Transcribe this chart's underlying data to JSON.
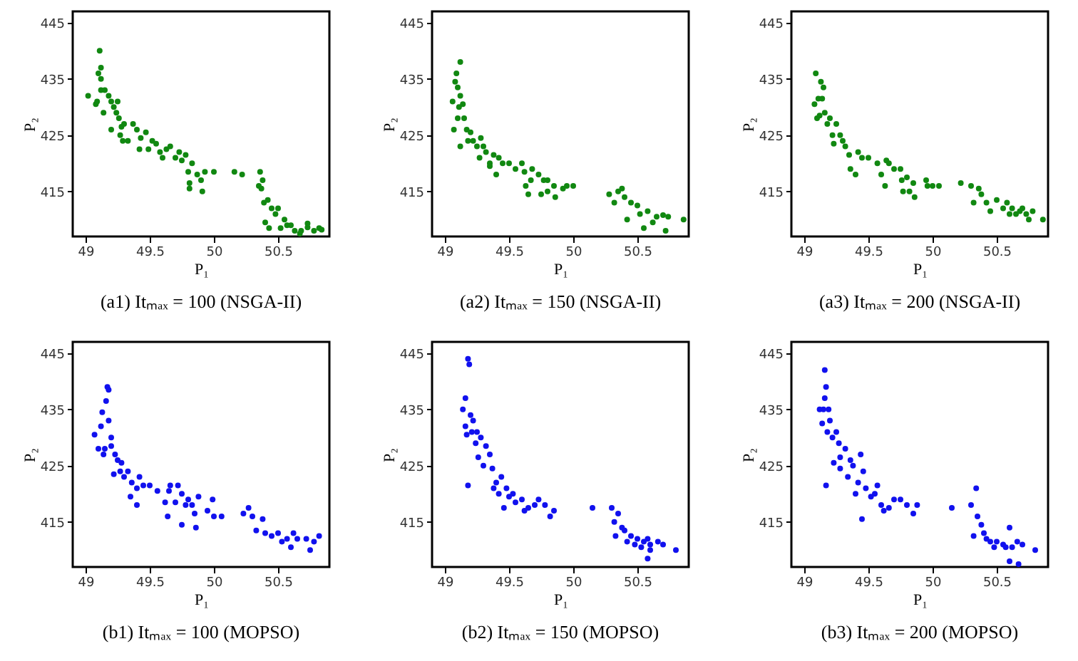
{
  "chart_data": [
    {
      "type": "scatter",
      "title": "(a1) Itₘₐₓ = 100 (NSGA-II)",
      "xlabel": "P₁",
      "ylabel": "P₂",
      "xlim": [
        48.9,
        50.9
      ],
      "ylim": [
        407,
        447
      ],
      "xticks": [
        49,
        49.5,
        50,
        50.5
      ],
      "yticks": [
        415,
        425,
        435,
        445
      ],
      "marker": "circle",
      "series": [
        {
          "color": "#118811",
          "x": [
            49.02,
            49.08,
            49.09,
            49.1,
            49.11,
            49.12,
            49.12,
            49.12,
            49.14,
            49.15,
            49.18,
            49.2,
            49.2,
            49.22,
            49.24,
            49.25,
            49.26,
            49.27,
            49.28,
            49.29,
            49.3,
            49.33,
            49.37,
            49.4,
            49.42,
            49.43,
            49.47,
            49.49,
            49.52,
            49.55,
            49.58,
            49.6,
            49.63,
            49.66,
            49.7,
            49.73,
            49.75,
            49.78,
            49.8,
            49.81,
            49.81,
            49.83,
            49.87,
            49.9,
            49.91,
            49.93,
            50.0,
            50.16,
            50.22,
            50.35,
            50.36,
            50.37,
            50.38,
            50.39,
            50.4,
            50.42,
            50.43,
            50.45,
            50.48,
            50.5,
            50.52,
            50.55,
            50.57,
            50.6,
            50.63,
            50.67,
            50.68,
            50.73,
            50.73,
            50.78,
            50.82,
            50.84
          ],
          "values": [
            432,
            430.5,
            431,
            436,
            440,
            437,
            435,
            433,
            429,
            433,
            432,
            431,
            426,
            430,
            429,
            431,
            428,
            425,
            426.5,
            424,
            427,
            424,
            427,
            426,
            422.5,
            424.5,
            425.5,
            422.5,
            424,
            423.5,
            422,
            421,
            422.5,
            423,
            421,
            422,
            420.5,
            421.5,
            418.5,
            416.5,
            415.5,
            420,
            418,
            417,
            415,
            418.5,
            418.5,
            418.5,
            418,
            416,
            418.5,
            415.5,
            417,
            413,
            409.5,
            413.5,
            408.5,
            412,
            411,
            412,
            408.5,
            410,
            409,
            409,
            408,
            407.5,
            408,
            408.6,
            409.3,
            408,
            408.5,
            408.2
          ]
        }
      ]
    },
    {
      "type": "scatter",
      "title": "(a2) Itₘₐₓ = 150 (NSGA-II)",
      "xlabel": "P₁",
      "ylabel": "P₂",
      "xlim": [
        48.9,
        50.9
      ],
      "ylim": [
        407,
        447
      ],
      "xticks": [
        49,
        49.5,
        50,
        50.5
      ],
      "yticks": [
        415,
        425,
        435,
        445
      ],
      "marker": "circle",
      "series": [
        {
          "color": "#118811",
          "x": [
            49.06,
            49.07,
            49.08,
            49.09,
            49.1,
            49.1,
            49.11,
            49.12,
            49.12,
            49.12,
            49.14,
            49.15,
            49.17,
            49.18,
            49.2,
            49.22,
            49.25,
            49.27,
            49.28,
            49.3,
            49.32,
            49.35,
            49.35,
            49.38,
            49.4,
            49.42,
            49.45,
            49.5,
            49.55,
            49.6,
            49.62,
            49.63,
            49.65,
            49.67,
            49.68,
            49.73,
            49.75,
            49.77,
            49.8,
            49.8,
            49.85,
            49.86,
            49.92,
            49.95,
            50.0,
            50.28,
            50.32,
            50.35,
            50.38,
            50.4,
            50.42,
            50.45,
            50.5,
            50.52,
            50.55,
            50.58,
            50.62,
            50.65,
            50.7,
            50.72,
            50.74,
            50.86
          ],
          "values": [
            431,
            426,
            434.5,
            436,
            433.5,
            428,
            430,
            432,
            438,
            423,
            430.5,
            428,
            426,
            424,
            425.5,
            424,
            423,
            421,
            424.5,
            423,
            422,
            420,
            419.5,
            421.5,
            418,
            421,
            420,
            420,
            419,
            420,
            418.5,
            416,
            414.5,
            417,
            419,
            418,
            414.5,
            417,
            417,
            415,
            416,
            414,
            415.5,
            416,
            416,
            414.5,
            413,
            415,
            415.5,
            414,
            410,
            413,
            412.5,
            411,
            408.5,
            411.5,
            409.5,
            410.5,
            410.8,
            408,
            410.5,
            410
          ]
        }
      ]
    },
    {
      "type": "scatter",
      "title": "(a3) Itₘₐₓ = 200 (NSGA-II)",
      "xlabel": "P₁",
      "ylabel": "P₂",
      "xlim": [
        48.9,
        50.9
      ],
      "ylim": [
        407,
        447
      ],
      "xticks": [
        49,
        49.5,
        50,
        50.5
      ],
      "yticks": [
        415,
        425,
        435,
        445
      ],
      "marker": "circle",
      "series": [
        {
          "color": "#118811",
          "x": [
            49.08,
            49.09,
            49.1,
            49.11,
            49.12,
            49.13,
            49.14,
            49.15,
            49.16,
            49.18,
            49.2,
            49.22,
            49.23,
            49.25,
            49.28,
            49.3,
            49.32,
            49.35,
            49.36,
            49.4,
            49.42,
            49.45,
            49.5,
            49.57,
            49.6,
            49.63,
            49.64,
            49.66,
            49.7,
            49.75,
            49.76,
            49.77,
            49.8,
            49.82,
            49.85,
            49.86,
            49.95,
            49.96,
            50.0,
            50.05,
            50.22,
            50.3,
            50.32,
            50.36,
            50.38,
            50.42,
            50.45,
            50.5,
            50.55,
            50.58,
            50.6,
            50.62,
            50.65,
            50.68,
            50.7,
            50.73,
            50.75,
            50.78,
            50.86
          ],
          "values": [
            430.5,
            436,
            428,
            431.5,
            428.5,
            434.5,
            431.5,
            433.5,
            429,
            427,
            428,
            425,
            423.5,
            427,
            425,
            424,
            423,
            421.5,
            419,
            418,
            422,
            421,
            421,
            420,
            418,
            416,
            420.5,
            420,
            419,
            419,
            417,
            415,
            417.5,
            415,
            416.5,
            414,
            417,
            416,
            416,
            416,
            416.5,
            416,
            413,
            415.5,
            414.5,
            413,
            411.5,
            413.5,
            412,
            413,
            411,
            412,
            411,
            411.5,
            412,
            411,
            410,
            411.5,
            410
          ]
        }
      ]
    },
    {
      "type": "scatter",
      "title": "(b1) Itₘₐₓ = 100 (MOPSO)",
      "xlabel": "P₁",
      "ylabel": "P₂",
      "xlim": [
        48.9,
        50.9
      ],
      "ylim": [
        407,
        447
      ],
      "xticks": [
        49,
        49.5,
        50,
        50.5
      ],
      "yticks": [
        415,
        425,
        435,
        445
      ],
      "marker": "circle",
      "series": [
        {
          "color": "#1111ee",
          "x": [
            49.07,
            49.1,
            49.12,
            49.13,
            49.14,
            49.15,
            49.16,
            49.17,
            49.18,
            49.18,
            49.2,
            49.2,
            49.22,
            49.23,
            49.25,
            49.27,
            49.28,
            49.3,
            49.33,
            49.35,
            49.36,
            49.4,
            49.4,
            49.42,
            49.45,
            49.5,
            49.56,
            49.62,
            49.64,
            49.65,
            49.66,
            49.7,
            49.72,
            49.75,
            49.75,
            49.78,
            49.8,
            49.83,
            49.85,
            49.86,
            49.88,
            49.95,
            49.99,
            50.0,
            50.06,
            50.23,
            50.27,
            50.3,
            50.33,
            50.38,
            50.4,
            50.45,
            50.5,
            50.53,
            50.57,
            50.6,
            50.62,
            50.65,
            50.72,
            50.75,
            50.78,
            50.82
          ],
          "values": [
            430.5,
            428,
            432,
            434.5,
            427,
            428,
            436.5,
            439,
            433,
            438.5,
            430,
            428.5,
            423.5,
            427,
            426,
            424,
            425.5,
            423,
            424,
            419.5,
            422,
            421,
            418,
            423,
            421.5,
            421.5,
            420.5,
            418.5,
            416,
            420.5,
            421.5,
            418.5,
            421.5,
            414.5,
            420,
            418,
            419,
            418,
            416.5,
            414,
            419.5,
            417,
            419,
            416,
            416,
            416.5,
            417.5,
            416,
            413.5,
            415.5,
            413,
            412.5,
            413,
            411.5,
            412,
            410.5,
            413,
            412,
            412,
            410,
            411.5,
            412.5
          ]
        }
      ]
    },
    {
      "type": "scatter",
      "title": "(b2) Itₘₐₓ = 150 (MOPSO)",
      "xlabel": "P₁",
      "ylabel": "P₂",
      "xlim": [
        48.9,
        50.9
      ],
      "ylim": [
        407,
        447
      ],
      "xticks": [
        49,
        49.5,
        50,
        50.5
      ],
      "yticks": [
        415,
        425,
        435,
        445
      ],
      "marker": "circle",
      "series": [
        {
          "color": "#1111ee",
          "x": [
            49.14,
            49.16,
            49.16,
            49.17,
            49.18,
            49.18,
            49.19,
            49.2,
            49.21,
            49.22,
            49.24,
            49.25,
            49.26,
            49.28,
            49.3,
            49.32,
            49.35,
            49.37,
            49.38,
            49.4,
            49.42,
            49.44,
            49.46,
            49.48,
            49.5,
            49.53,
            49.55,
            49.6,
            49.62,
            49.65,
            49.7,
            49.73,
            49.78,
            49.82,
            49.85,
            50.15,
            50.3,
            50.32,
            50.33,
            50.35,
            50.38,
            50.4,
            50.42,
            50.45,
            50.48,
            50.5,
            50.53,
            50.55,
            50.58,
            50.58,
            50.6,
            50.6,
            50.66,
            50.7,
            50.8
          ],
          "values": [
            435,
            432,
            437,
            430.5,
            421.5,
            444,
            443,
            434,
            431,
            433,
            429,
            431,
            426.5,
            430,
            425,
            428.5,
            427,
            424.5,
            421,
            422,
            420,
            423,
            417.5,
            421,
            419.5,
            420,
            418.5,
            419,
            417,
            417.5,
            418,
            419,
            418,
            416,
            417,
            417.5,
            417.5,
            415,
            412.5,
            416.5,
            414,
            413.5,
            411.5,
            412.5,
            411,
            412,
            410.5,
            411.5,
            408.5,
            412,
            410,
            411,
            411.5,
            411,
            410
          ]
        }
      ]
    },
    {
      "type": "scatter",
      "title": "(b3) Itₘₐₓ = 200 (MOPSO)",
      "xlabel": "P₁",
      "ylabel": "P₂",
      "xlim": [
        48.9,
        50.9
      ],
      "ylim": [
        407,
        447
      ],
      "xticks": [
        49,
        49.5,
        50,
        50.5
      ],
      "yticks": [
        415,
        425,
        435,
        445
      ],
      "marker": "circle",
      "series": [
        {
          "color": "#1111ee",
          "x": [
            49.12,
            49.14,
            49.15,
            49.16,
            49.16,
            49.17,
            49.17,
            49.18,
            49.19,
            49.2,
            49.22,
            49.23,
            49.25,
            49.27,
            49.28,
            49.28,
            49.32,
            49.34,
            49.36,
            49.38,
            49.4,
            49.42,
            49.44,
            49.45,
            49.46,
            49.48,
            49.52,
            49.55,
            49.57,
            49.6,
            49.62,
            49.66,
            49.7,
            49.75,
            49.8,
            49.85,
            49.88,
            50.15,
            50.3,
            50.32,
            50.34,
            50.35,
            50.38,
            50.4,
            50.42,
            50.45,
            50.48,
            50.5,
            50.55,
            50.57,
            50.6,
            50.6,
            50.62,
            50.66,
            50.67,
            50.7,
            50.8
          ],
          "values": [
            435,
            432.5,
            435,
            437,
            442,
            439,
            421.5,
            431,
            435,
            433,
            430,
            425.5,
            431,
            429,
            426.5,
            424.5,
            428,
            423,
            426,
            425,
            420,
            422,
            427,
            415.5,
            424,
            421,
            419.5,
            420,
            421.5,
            418,
            417,
            417.5,
            419,
            419,
            418,
            416.5,
            418,
            417.5,
            418,
            412.5,
            421,
            416,
            414.5,
            413,
            412,
            411.5,
            410.5,
            411.5,
            411,
            410.5,
            408,
            414,
            410.5,
            411.5,
            407.5,
            411,
            410
          ]
        }
      ]
    }
  ]
}
